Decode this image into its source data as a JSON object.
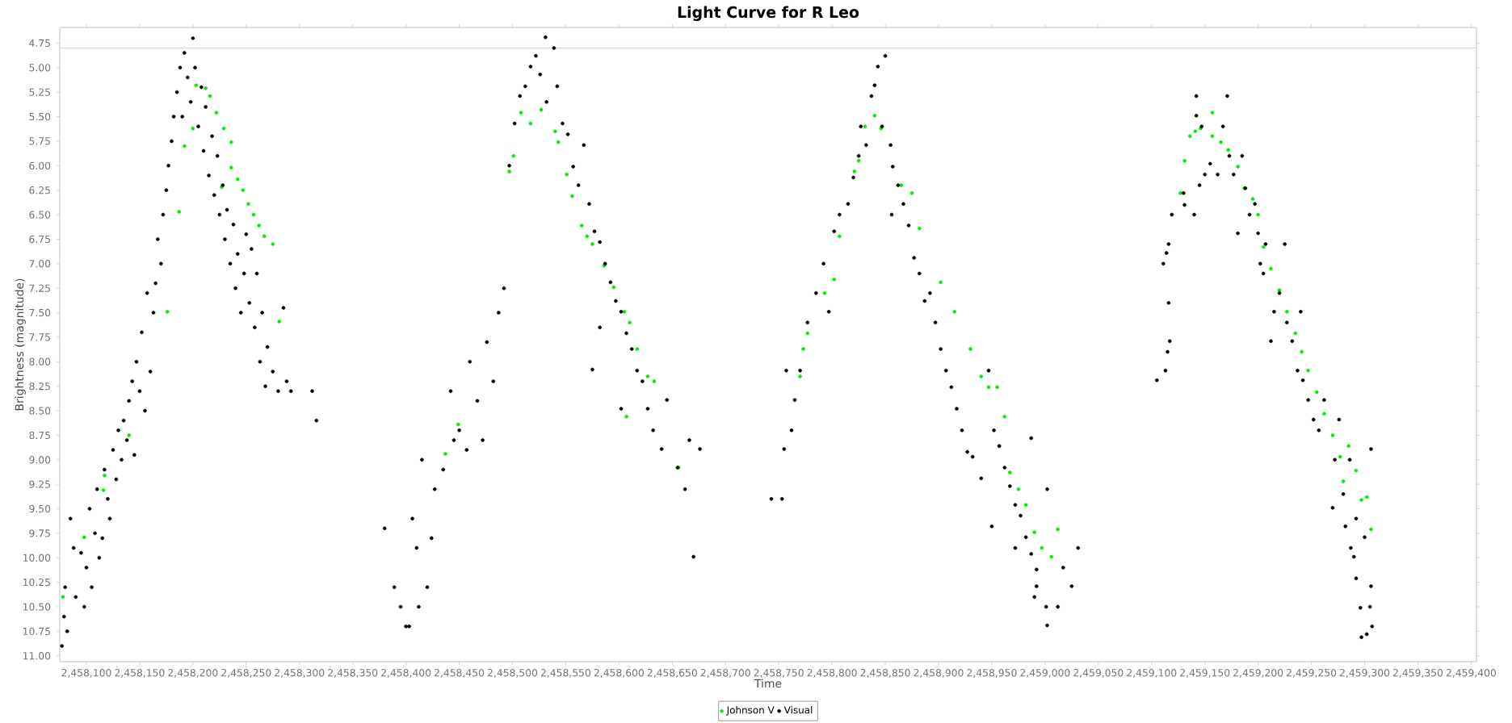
{
  "chart_data": {
    "type": "scatter",
    "title": "Light Curve for R Leo",
    "xlabel": "Time",
    "ylabel": "Brightness (magnitude)",
    "legend": "bottom",
    "grid": false,
    "xlim": [
      2458075,
      2459405
    ],
    "ylim": [
      11.06,
      4.59
    ],
    "xticks": [
      {
        "value": 2458100,
        "label": "2,458,100"
      },
      {
        "value": 2458150,
        "label": "2,458,150"
      },
      {
        "value": 2458200,
        "label": "2,458,200"
      },
      {
        "value": 2458250,
        "label": "2,458,250"
      },
      {
        "value": 2458300,
        "label": "2,458,300"
      },
      {
        "value": 2458350,
        "label": "2,458,350"
      },
      {
        "value": 2458400,
        "label": "2,458,400"
      },
      {
        "value": 2458450,
        "label": "2,458,450"
      },
      {
        "value": 2458500,
        "label": "2,458,500"
      },
      {
        "value": 2458550,
        "label": "2,458,550"
      },
      {
        "value": 2458600,
        "label": "2,458,600"
      },
      {
        "value": 2458650,
        "label": "2,458,650"
      },
      {
        "value": 2458700,
        "label": "2,458,700"
      },
      {
        "value": 2458750,
        "label": "2,458,750"
      },
      {
        "value": 2458800,
        "label": "2,458,800"
      },
      {
        "value": 2458850,
        "label": "2,458,850"
      },
      {
        "value": 2458900,
        "label": "2,458,900"
      },
      {
        "value": 2458950,
        "label": "2,458,950"
      },
      {
        "value": 2459000,
        "label": "2,459,000"
      },
      {
        "value": 2459050,
        "label": "2,459,050"
      },
      {
        "value": 2459100,
        "label": "2,459,100"
      },
      {
        "value": 2459150,
        "label": "2,459,150"
      },
      {
        "value": 2459200,
        "label": "2,459,200"
      },
      {
        "value": 2459250,
        "label": "2,459,250"
      },
      {
        "value": 2459300,
        "label": "2,459,300"
      },
      {
        "value": 2459350,
        "label": "2,459,350"
      },
      {
        "value": 2459400,
        "label": "2,459,400"
      }
    ],
    "yticks": [
      {
        "value": 4.75,
        "label": "4.75"
      },
      {
        "value": 5,
        "label": "5.00"
      },
      {
        "value": 5.25,
        "label": "5.25"
      },
      {
        "value": 5.5,
        "label": "5.50"
      },
      {
        "value": 5.75,
        "label": "5.75"
      },
      {
        "value": 6,
        "label": "6.00"
      },
      {
        "value": 6.25,
        "label": "6.25"
      },
      {
        "value": 6.5,
        "label": "6.50"
      },
      {
        "value": 6.75,
        "label": "6.75"
      },
      {
        "value": 7,
        "label": "7.00"
      },
      {
        "value": 7.25,
        "label": "7.25"
      },
      {
        "value": 7.5,
        "label": "7.50"
      },
      {
        "value": 7.75,
        "label": "7.75"
      },
      {
        "value": 8,
        "label": "8.00"
      },
      {
        "value": 8.25,
        "label": "8.25"
      },
      {
        "value": 8.5,
        "label": "8.50"
      },
      {
        "value": 8.75,
        "label": "8.75"
      },
      {
        "value": 9,
        "label": "9.00"
      },
      {
        "value": 9.25,
        "label": "9.25"
      },
      {
        "value": 9.5,
        "label": "9.50"
      },
      {
        "value": 9.75,
        "label": "9.75"
      },
      {
        "value": 10,
        "label": "10.00"
      },
      {
        "value": 10.25,
        "label": "10.25"
      },
      {
        "value": 10.5,
        "label": "10.50"
      },
      {
        "value": 10.75,
        "label": "10.75"
      },
      {
        "value": 11,
        "label": "11.00"
      }
    ],
    "ref_lines": [
      {
        "axis": "y",
        "value": 4.8,
        "color": "#d0d0ff"
      }
    ],
    "series": [
      {
        "name": "Johnson V",
        "color": "#00ee00",
        "x": [
          2458078,
          2458098,
          2458116,
          2458117,
          2458140,
          2458176,
          2458187,
          2458192,
          2458200,
          2458203,
          2458212,
          2458216,
          2458222,
          2458229,
          2458236,
          2458227,
          2458236,
          2458242,
          2458247,
          2458252,
          2458257,
          2458262,
          2458267,
          2458275,
          2458281,
          2458449,
          2458437,
          2458497,
          2458501,
          2458508,
          2458517,
          2458527,
          2458540,
          2458543,
          2458551,
          2458556,
          2458565,
          2458570,
          2458575,
          2458586,
          2458595,
          2458605,
          2458610,
          2458617,
          2458627,
          2458633,
          2458607,
          2458656,
          2458770,
          2458773,
          2458777,
          2458793,
          2458802,
          2458807,
          2458821,
          2458825,
          2458831,
          2458840,
          2458846,
          2458865,
          2458875,
          2458882,
          2458902,
          2458915,
          2458930,
          2458940,
          2458947,
          2458955,
          2458962,
          2458957,
          2458967,
          2458975,
          2458982,
          2458990,
          2458997,
          2459006,
          2459012,
          2459127,
          2459131,
          2459136,
          2459141,
          2459146,
          2459157,
          2459157,
          2459165,
          2459172,
          2459181,
          2459187,
          2459195,
          2459200,
          2459205,
          2459212,
          2459220,
          2459227,
          2459235,
          2459241,
          2459247,
          2459255,
          2459262,
          2459270,
          2459277,
          2459285,
          2459280,
          2459292,
          2459297,
          2459302,
          2459306
        ],
        "values": [
          10.4,
          9.79,
          9.31,
          9.16,
          8.75,
          7.49,
          6.47,
          5.8,
          5.62,
          5.18,
          5.21,
          5.29,
          5.46,
          5.62,
          5.76,
          6.22,
          6.02,
          6.14,
          6.25,
          6.39,
          6.5,
          6.61,
          6.72,
          6.8,
          7.59,
          8.64,
          8.94,
          6.06,
          5.9,
          5.46,
          5.57,
          5.43,
          5.65,
          5.76,
          6.09,
          6.31,
          6.61,
          6.72,
          6.8,
          7.02,
          7.24,
          7.49,
          7.6,
          7.87,
          8.15,
          8.2,
          8.56,
          9.08,
          8.15,
          7.87,
          7.71,
          7.3,
          7.16,
          6.72,
          6.06,
          5.95,
          5.6,
          5.49,
          5.62,
          6.2,
          6.28,
          6.64,
          7.19,
          7.49,
          7.87,
          8.15,
          8.26,
          8.26,
          8.56,
          8.86,
          9.13,
          9.3,
          9.46,
          9.74,
          9.9,
          9.99,
          9.71,
          6.28,
          5.95,
          5.7,
          5.65,
          5.62,
          5.46,
          5.7,
          5.76,
          5.84,
          6.01,
          6.23,
          6.34,
          6.5,
          6.83,
          7.05,
          7.27,
          7.49,
          7.71,
          7.9,
          8.09,
          8.31,
          8.53,
          8.75,
          8.97,
          8.86,
          9.22,
          9.11,
          9.41,
          9.38,
          9.71
        ]
      },
      {
        "name": "Visual",
        "color": "#000000",
        "x": [
          2458077,
          2458079,
          2458080,
          2458082,
          2458085,
          2458088,
          2458090,
          2458095,
          2458098,
          2458100,
          2458103,
          2458105,
          2458108,
          2458110,
          2458112,
          2458115,
          2458117,
          2458120,
          2458122,
          2458125,
          2458128,
          2458130,
          2458133,
          2458135,
          2458138,
          2458140,
          2458143,
          2458145,
          2458147,
          2458150,
          2458152,
          2458155,
          2458157,
          2458160,
          2458163,
          2458165,
          2458167,
          2458170,
          2458172,
          2458175,
          2458177,
          2458180,
          2458182,
          2458185,
          2458188,
          2458190,
          2458192,
          2458195,
          2458198,
          2458200,
          2458202,
          2458205,
          2458208,
          2458210,
          2458212,
          2458215,
          2458218,
          2458220,
          2458223,
          2458225,
          2458228,
          2458230,
          2458232,
          2458235,
          2458238,
          2458240,
          2458242,
          2458245,
          2458248,
          2458250,
          2458253,
          2458255,
          2458258,
          2458260,
          2458263,
          2458265,
          2458268,
          2458270,
          2458275,
          2458280,
          2458285,
          2458288,
          2458292,
          2458312,
          2458316,
          2458380,
          2458389,
          2458395,
          2458400,
          2458403,
          2458406,
          2458410,
          2458412,
          2458415,
          2458420,
          2458424,
          2458427,
          2458435,
          2458442,
          2458445,
          2458450,
          2458457,
          2458460,
          2458467,
          2458472,
          2458476,
          2458482,
          2458487,
          2458492,
          2458497,
          2458502,
          2458507,
          2458512,
          2458517,
          2458522,
          2458526,
          2458531,
          2458539,
          2458532,
          2458542,
          2458547,
          2458552,
          2458557,
          2458562,
          2458567,
          2458572,
          2458577,
          2458582,
          2458587,
          2458592,
          2458597,
          2458602,
          2458607,
          2458612,
          2458617,
          2458622,
          2458627,
          2458632,
          2458640,
          2458645,
          2458655,
          2458662,
          2458666,
          2458670,
          2458676,
          2458575,
          2458602,
          2458582,
          2458743,
          2458753,
          2458755,
          2458762,
          2458765,
          2458757,
          2458770,
          2458777,
          2458785,
          2458792,
          2458797,
          2458802,
          2458807,
          2458815,
          2458820,
          2458825,
          2458827,
          2458832,
          2458837,
          2458840,
          2458843,
          2458850,
          2458847,
          2458855,
          2458857,
          2458862,
          2458856,
          2458867,
          2458872,
          2458877,
          2458882,
          2458887,
          2458892,
          2458897,
          2458902,
          2458907,
          2458912,
          2458917,
          2458922,
          2458927,
          2458932,
          2458940,
          2458947,
          2458952,
          2458957,
          2458962,
          2458967,
          2458972,
          2458977,
          2458982,
          2458987,
          2458990,
          2458992,
          2459001,
          2459002,
          2459012,
          2459017,
          2459025,
          2459031,
          2459002,
          2458987,
          2458950,
          2458972,
          2458992,
          2459105,
          2459111,
          2459113,
          2459115,
          2459116,
          2459117,
          2459114,
          2459116,
          2459119,
          2459131,
          2459130,
          2459140,
          2459142,
          2459142,
          2459145,
          2459147,
          2459150,
          2459155,
          2459162,
          2459167,
          2459171,
          2459173,
          2459177,
          2459181,
          2459185,
          2459188,
          2459192,
          2459197,
          2459200,
          2459202,
          2459205,
          2459207,
          2459212,
          2459215,
          2459220,
          2459225,
          2459227,
          2459232,
          2459237,
          2459240,
          2459242,
          2459247,
          2459252,
          2459257,
          2459262,
          2459270,
          2459272,
          2459276,
          2459280,
          2459282,
          2459287,
          2459290,
          2459292,
          2459296,
          2459297,
          2459300,
          2459302,
          2459305,
          2459306,
          2459307,
          2459306,
          2459286,
          2459292
        ],
        "values": [
          10.9,
          10.6,
          10.3,
          10.75,
          9.6,
          9.9,
          10.4,
          9.95,
          10.5,
          10.1,
          9.5,
          10.3,
          9.75,
          9.3,
          10.0,
          9.8,
          9.1,
          9.4,
          9.6,
          8.9,
          9.2,
          8.7,
          9.0,
          8.6,
          8.8,
          8.4,
          8.2,
          8.95,
          8.0,
          8.3,
          7.7,
          8.5,
          7.3,
          8.1,
          7.5,
          7.2,
          6.75,
          7.0,
          6.5,
          6.25,
          6.0,
          5.75,
          5.5,
          5.25,
          5.0,
          5.5,
          4.85,
          5.1,
          5.35,
          4.7,
          5.0,
          5.6,
          5.2,
          5.85,
          5.4,
          6.1,
          5.7,
          6.3,
          5.9,
          6.5,
          6.2,
          6.75,
          6.45,
          7.0,
          6.6,
          7.25,
          6.9,
          7.5,
          7.1,
          6.7,
          7.4,
          6.85,
          7.65,
          7.1,
          8.0,
          7.5,
          8.25,
          7.85,
          8.1,
          8.3,
          7.45,
          8.2,
          8.3,
          8.3,
          8.6,
          9.7,
          10.3,
          10.5,
          10.7,
          10.7,
          9.6,
          9.9,
          10.5,
          9.0,
          10.3,
          9.8,
          9.3,
          9.1,
          8.3,
          8.8,
          8.7,
          8.9,
          8.0,
          8.4,
          8.8,
          7.8,
          8.2,
          7.5,
          7.25,
          6.0,
          5.57,
          5.29,
          5.19,
          4.99,
          4.88,
          5.07,
          4.69,
          4.8,
          5.35,
          5.19,
          5.57,
          5.68,
          6.01,
          6.2,
          5.79,
          6.39,
          6.67,
          6.78,
          7.0,
          7.19,
          7.38,
          7.49,
          7.71,
          7.87,
          8.09,
          8.2,
          8.48,
          8.7,
          8.89,
          8.39,
          9.08,
          9.3,
          8.8,
          9.99,
          8.89,
          8.08,
          8.48,
          7.65,
          9.4,
          9.4,
          8.89,
          8.7,
          8.39,
          8.09,
          8.09,
          7.6,
          7.3,
          7.0,
          7.49,
          6.67,
          6.5,
          6.39,
          6.12,
          5.9,
          5.6,
          5.79,
          5.29,
          5.18,
          4.99,
          4.88,
          5.6,
          5.79,
          6.01,
          6.2,
          6.5,
          6.39,
          6.61,
          6.94,
          7.1,
          7.38,
          7.3,
          7.6,
          7.87,
          8.09,
          8.26,
          8.48,
          8.7,
          8.92,
          8.97,
          9.19,
          8.09,
          8.7,
          8.86,
          9.08,
          9.27,
          9.46,
          9.57,
          9.79,
          9.96,
          10.4,
          10.12,
          10.5,
          10.69,
          10.5,
          10.1,
          10.29,
          9.9,
          9.3,
          8.78,
          9.68,
          9.9,
          10.29,
          8.19,
          7.0,
          8.09,
          7.9,
          7.4,
          7.79,
          6.89,
          6.8,
          6.5,
          6.4,
          6.28,
          6.5,
          5.29,
          5.49,
          6.2,
          5.6,
          6.09,
          5.98,
          6.09,
          5.6,
          5.29,
          5.9,
          6.09,
          6.69,
          5.9,
          6.23,
          6.5,
          6.39,
          6.69,
          7.0,
          7.1,
          6.8,
          7.79,
          7.49,
          7.3,
          6.8,
          7.6,
          7.79,
          8.09,
          7.49,
          8.19,
          8.39,
          8.59,
          8.7,
          8.39,
          9.49,
          9.0,
          8.59,
          9.35,
          9.68,
          9.9,
          9.99,
          10.21,
          10.51,
          10.81,
          9.79,
          10.78,
          10.5,
          10.29,
          10.7,
          8.89,
          9.0,
          9.6
        ]
      }
    ]
  }
}
